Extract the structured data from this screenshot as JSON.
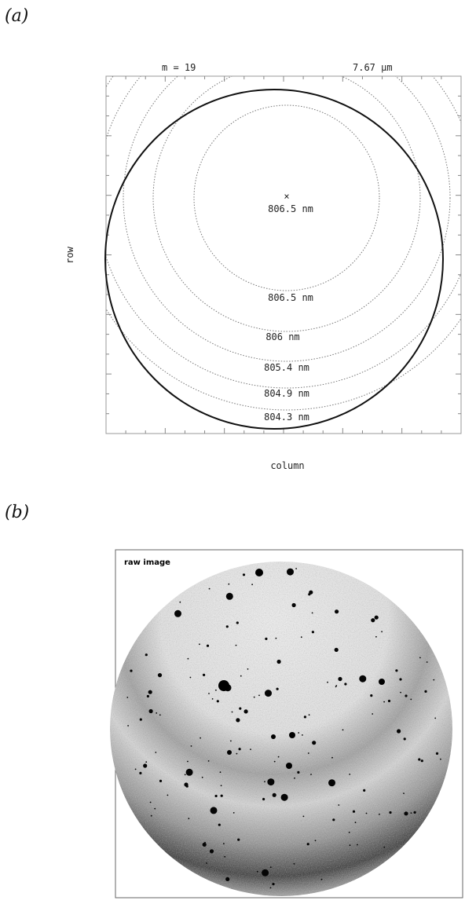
{
  "figure": {
    "panel_a": {
      "label": "(a)",
      "header_left": "m  =  19",
      "header_right": "7.67 μm",
      "xlabel": "column",
      "ylabel": "row",
      "center_marker": "×",
      "ring_labels": [
        "806.5 nm",
        "806.5 nm",
        "806 nm",
        "805.4 nm",
        "804.9 nm",
        "804.3 nm"
      ]
    },
    "panel_b": {
      "label": "(b)",
      "image_title": "raw image"
    }
  }
}
